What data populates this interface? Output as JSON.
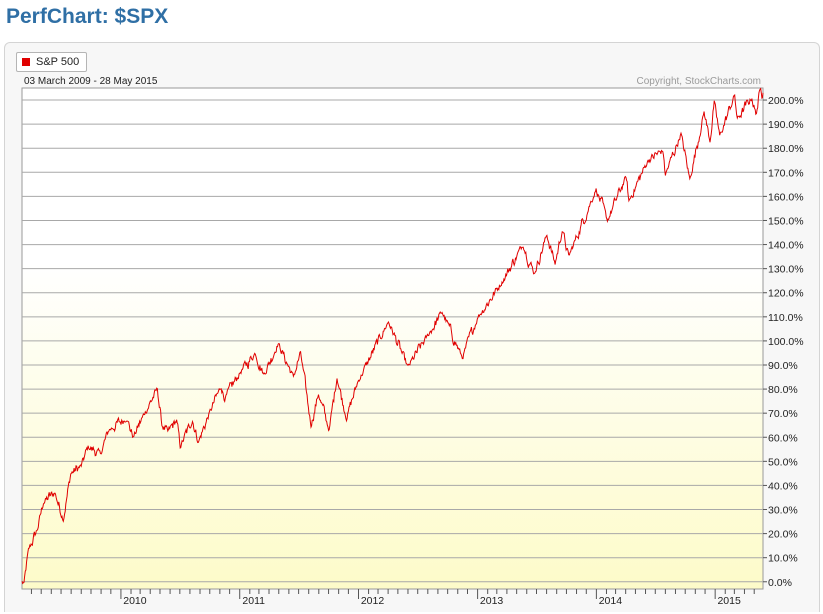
{
  "page": {
    "title": "PerfChart: $SPX"
  },
  "legend": {
    "label": "S&P 500",
    "color": "#e00000"
  },
  "chart_data": {
    "type": "line",
    "date_range_label": "03 March 2009 - 28 May 2015",
    "copyright": "Copyright, StockCharts.com",
    "x_range": [
      "2009-03-03",
      "2015-05-28"
    ],
    "ylim": [
      -3,
      205
    ],
    "y_ticks": [
      0,
      10,
      20,
      30,
      40,
      50,
      60,
      70,
      80,
      90,
      100,
      110,
      120,
      130,
      140,
      150,
      160,
      170,
      180,
      190,
      200
    ],
    "y_tick_labels": [
      "0.0%",
      "10.0%",
      "20.0%",
      "30.0%",
      "40.0%",
      "50.0%",
      "60.0%",
      "70.0%",
      "80.0%",
      "90.0%",
      "100.0%",
      "110.0%",
      "120.0%",
      "130.0%",
      "140.0%",
      "150.0%",
      "160.0%",
      "170.0%",
      "180.0%",
      "190.0%",
      "200.0%"
    ],
    "x_tick_labels": [
      {
        "date": "2010-01-01",
        "label": "2010"
      },
      {
        "date": "2011-01-01",
        "label": "2011"
      },
      {
        "date": "2012-01-01",
        "label": "2012"
      },
      {
        "date": "2013-01-01",
        "label": "2013"
      },
      {
        "date": "2014-01-01",
        "label": "2014"
      },
      {
        "date": "2015-01-01",
        "label": "2015"
      }
    ],
    "grid": true,
    "series": [
      {
        "color": "#e00000",
        "points": [
          [
            "2009-03-03",
            0
          ],
          [
            "2009-03-09",
            -1
          ],
          [
            "2009-03-23",
            13
          ],
          [
            "2009-04-20",
            22
          ],
          [
            "2009-05-08",
            33
          ],
          [
            "2009-06-12",
            37
          ],
          [
            "2009-07-08",
            26
          ],
          [
            "2009-07-31",
            45
          ],
          [
            "2009-09-01",
            48
          ],
          [
            "2009-09-22",
            56
          ],
          [
            "2009-10-30",
            53
          ],
          [
            "2009-11-25",
            63
          ],
          [
            "2010-01-19",
            68
          ],
          [
            "2010-02-08",
            60
          ],
          [
            "2010-03-15",
            70
          ],
          [
            "2010-04-23",
            80
          ],
          [
            "2010-05-07",
            65
          ],
          [
            "2010-05-25",
            62
          ],
          [
            "2010-06-21",
            67
          ],
          [
            "2010-07-02",
            56
          ],
          [
            "2010-08-09",
            67
          ],
          [
            "2010-08-27",
            58
          ],
          [
            "2010-09-30",
            70
          ],
          [
            "2010-11-05",
            81
          ],
          [
            "2010-11-16",
            76
          ],
          [
            "2011-01-03",
            87
          ],
          [
            "2011-02-18",
            95
          ],
          [
            "2011-03-16",
            86
          ],
          [
            "2011-04-29",
            99
          ],
          [
            "2011-06-15",
            85
          ],
          [
            "2011-07-07",
            95
          ],
          [
            "2011-08-08",
            65
          ],
          [
            "2011-08-31",
            78
          ],
          [
            "2011-10-03",
            63
          ],
          [
            "2011-10-27",
            85
          ],
          [
            "2011-11-25",
            68
          ],
          [
            "2011-12-30",
            83
          ],
          [
            "2012-04-02",
            108
          ],
          [
            "2012-06-01",
            89
          ],
          [
            "2012-07-31",
            102
          ],
          [
            "2012-09-14",
            112
          ],
          [
            "2012-11-15",
            93
          ],
          [
            "2013-01-02",
            110
          ],
          [
            "2013-03-15",
            124
          ],
          [
            "2013-05-21",
            140
          ],
          [
            "2013-06-24",
            128
          ],
          [
            "2013-08-02",
            144
          ],
          [
            "2013-08-27",
            132
          ],
          [
            "2013-09-18",
            146
          ],
          [
            "2013-10-08",
            135
          ],
          [
            "2013-12-31",
            163
          ],
          [
            "2014-02-04",
            150
          ],
          [
            "2014-04-02",
            168
          ],
          [
            "2014-04-11",
            158
          ],
          [
            "2014-06-09",
            175
          ],
          [
            "2014-07-24",
            179
          ],
          [
            "2014-08-01",
            169
          ],
          [
            "2014-09-18",
            186
          ],
          [
            "2014-10-15",
            167
          ],
          [
            "2014-11-28",
            195
          ],
          [
            "2014-12-16",
            183
          ],
          [
            "2014-12-29",
            199
          ],
          [
            "2015-01-15",
            185
          ],
          [
            "2015-03-02",
            202
          ],
          [
            "2015-03-10",
            192
          ],
          [
            "2015-04-24",
            201
          ],
          [
            "2015-05-06",
            194
          ],
          [
            "2015-05-21",
            205
          ],
          [
            "2015-05-28",
            203
          ]
        ]
      }
    ]
  }
}
